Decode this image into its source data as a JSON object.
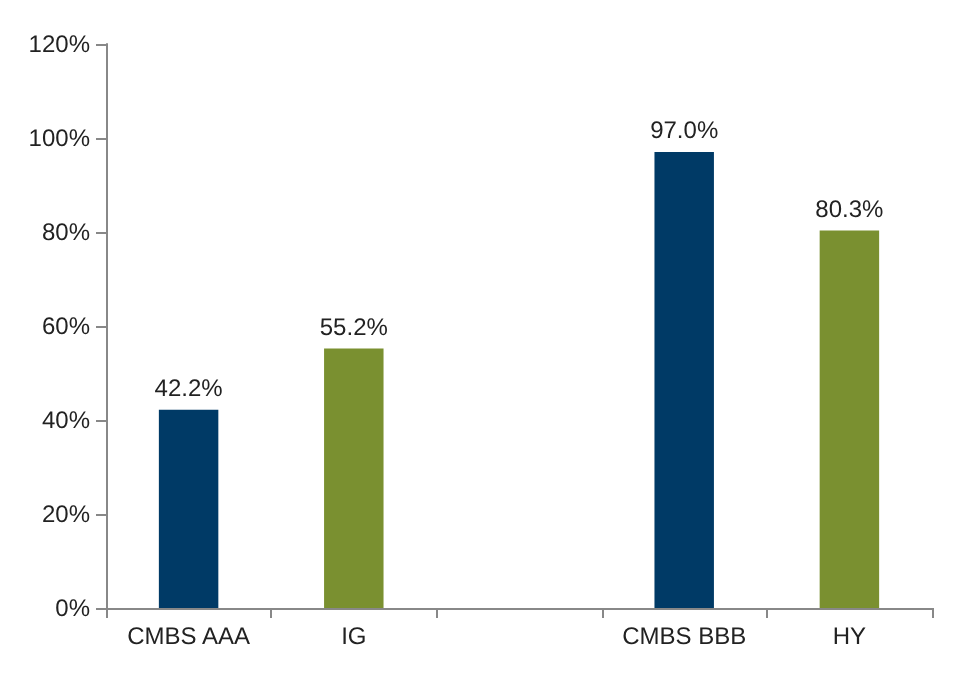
{
  "chart_data": {
    "type": "bar",
    "categories": [
      "CMBS AAA",
      "IG",
      null,
      "CMBS BBB",
      "HY"
    ],
    "values": [
      42.2,
      55.2,
      null,
      97.0,
      80.3
    ],
    "colors": [
      "#003a66",
      "#7a9030",
      null,
      "#003a66",
      "#7a9030"
    ],
    "value_labels": [
      "42.2%",
      "55.2%",
      null,
      "97.0%",
      "80.3%"
    ],
    "ylim": [
      0,
      120
    ],
    "yticks": [
      {
        "value": 0,
        "label": "0%"
      },
      {
        "value": 20,
        "label": "20%"
      },
      {
        "value": 40,
        "label": "40%"
      },
      {
        "value": 60,
        "label": "60%"
      },
      {
        "value": 80,
        "label": "80%"
      },
      {
        "value": 100,
        "label": "100%"
      },
      {
        "value": 120,
        "label": "120%"
      }
    ],
    "grid": false
  }
}
